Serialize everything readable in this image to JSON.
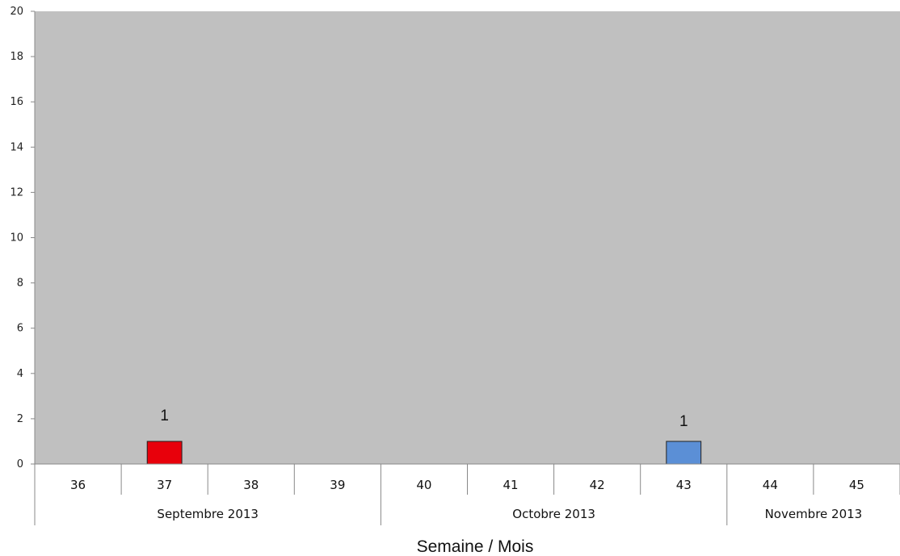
{
  "chart_data": {
    "type": "bar",
    "title": "",
    "xlabel": "Semaine /  Mois",
    "ylabel": "",
    "ylim": [
      0,
      20
    ],
    "yticks": [
      0,
      2,
      4,
      6,
      8,
      10,
      12,
      14,
      16,
      18,
      20
    ],
    "grid": false,
    "categories": [
      "36",
      "37",
      "38",
      "39",
      "40",
      "41",
      "42",
      "43",
      "44",
      "45"
    ],
    "groups": [
      {
        "label": "Septembre 2013",
        "span": 4
      },
      {
        "label": "Octobre 2013",
        "span": 4
      },
      {
        "label": "Novembre 2013",
        "span": 2
      }
    ],
    "series": [
      {
        "values": [
          0,
          1,
          0,
          0,
          0,
          0,
          0,
          0,
          0,
          0
        ],
        "color": "#e8000b",
        "data_labels": [
          "",
          "1",
          "",
          "",
          "",
          "",
          "",
          "",
          "",
          ""
        ]
      },
      {
        "values": [
          0,
          0,
          0,
          0,
          0,
          0,
          0,
          1,
          0,
          0
        ],
        "color": "#5b8fd6",
        "data_labels": [
          "",
          "",
          "",
          "",
          "",
          "",
          "",
          "1",
          "",
          ""
        ]
      }
    ],
    "plot_background": "#c0c0c0"
  }
}
